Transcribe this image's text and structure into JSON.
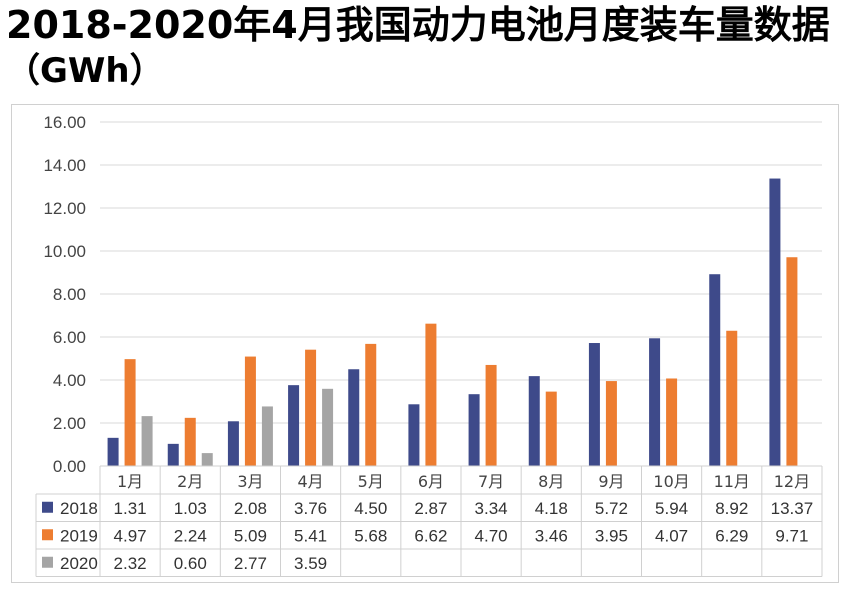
{
  "title_line1": "2018-2020年4月我国动力电池月度装车量数据",
  "title_line2": "（GWh）",
  "chart_data": {
    "type": "bar",
    "title": "2018-2020年4月我国动力电池月度装车量数据（GWh）",
    "categories": [
      "1月",
      "2月",
      "3月",
      "4月",
      "5月",
      "6月",
      "7月",
      "8月",
      "9月",
      "10月",
      "11月",
      "12月"
    ],
    "series": [
      {
        "name": "2018",
        "color": "#3e4a8a",
        "values": [
          1.31,
          1.03,
          2.08,
          3.76,
          4.5,
          2.87,
          3.34,
          4.18,
          5.72,
          5.94,
          8.92,
          13.37
        ]
      },
      {
        "name": "2019",
        "color": "#ed7d31",
        "values": [
          4.97,
          2.24,
          5.09,
          5.41,
          5.68,
          6.62,
          4.7,
          3.46,
          3.95,
          4.07,
          6.29,
          9.71
        ]
      },
      {
        "name": "2020",
        "color": "#a5a5a5",
        "values": [
          2.32,
          0.6,
          2.77,
          3.59,
          null,
          null,
          null,
          null,
          null,
          null,
          null,
          null
        ]
      }
    ],
    "ylim": [
      0,
      16
    ],
    "yticks": [
      "0.00",
      "2.00",
      "4.00",
      "6.00",
      "8.00",
      "10.00",
      "12.00",
      "14.00",
      "16.00"
    ],
    "grid": true,
    "legend": "data-table"
  }
}
